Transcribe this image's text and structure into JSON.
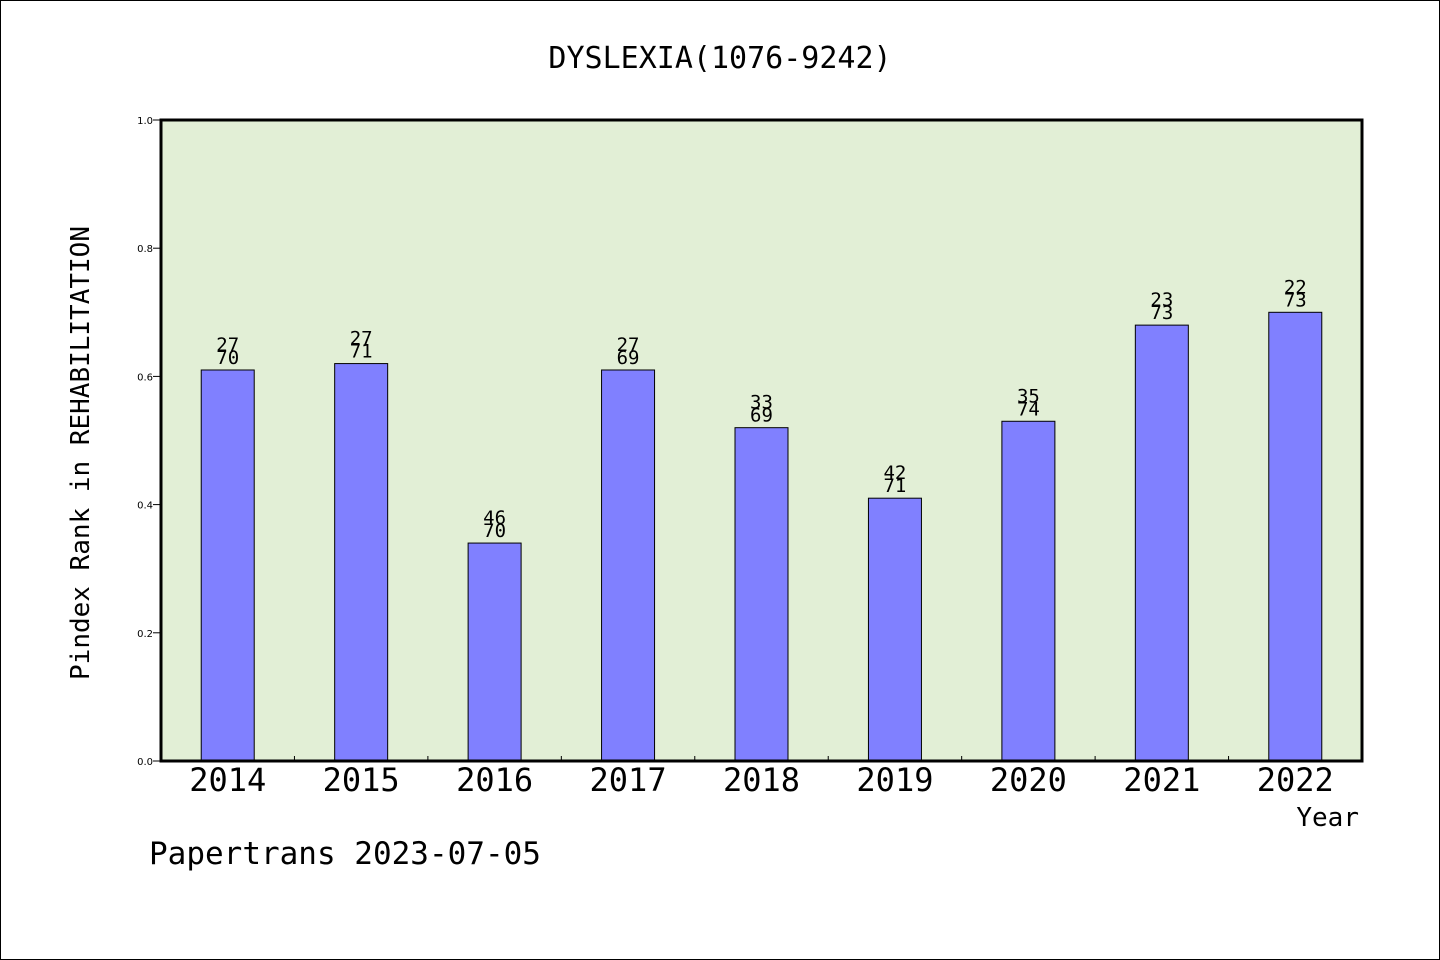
{
  "chart_data": {
    "type": "bar",
    "title": "DYSLEXIA(1076-9242)",
    "xlabel": "Year",
    "ylabel": "Pindex Rank in REHABILITATION",
    "categories": [
      "2014",
      "2015",
      "2016",
      "2017",
      "2018",
      "2019",
      "2020",
      "2021",
      "2022"
    ],
    "values": [
      0.61,
      0.62,
      0.34,
      0.61,
      0.52,
      0.41,
      0.53,
      0.68,
      0.7
    ],
    "rank_labels": [
      "27",
      "27",
      "46",
      "27",
      "33",
      "42",
      "35",
      "23",
      "22"
    ],
    "total_labels": [
      "70",
      "71",
      "70",
      "69",
      "69",
      "71",
      "74",
      "73",
      "73"
    ],
    "ylim": [
      0.0,
      1.0
    ],
    "yticks": [
      "0.0",
      "0.2",
      "0.4",
      "0.6",
      "0.8",
      "1.0"
    ],
    "grid": false,
    "legend": "none",
    "bar_color": "#8080ff",
    "plot_background": "#e2efd6"
  },
  "footer": {
    "text": "Papertrans 2023-07-05"
  }
}
